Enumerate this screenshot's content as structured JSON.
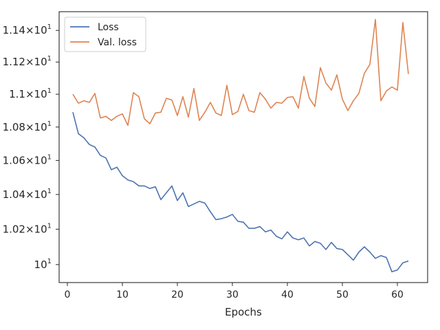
{
  "chart_data": {
    "type": "line",
    "title": "",
    "xlabel": "Epochs",
    "ylabel": "",
    "xlim": [
      -1.5,
      65.5
    ],
    "ylim": [
      9.9,
      11.52
    ],
    "y_scale": "log",
    "grid": false,
    "legend_position": "top-left",
    "x_ticks": [
      {
        "value": 0,
        "label": "0"
      },
      {
        "value": 10,
        "label": "10"
      },
      {
        "value": 20,
        "label": "20"
      },
      {
        "value": 30,
        "label": "30"
      },
      {
        "value": 40,
        "label": "40"
      },
      {
        "value": 50,
        "label": "50"
      },
      {
        "value": 60,
        "label": "60"
      }
    ],
    "y_ticks": [
      {
        "value": 10.0,
        "mantissa": "",
        "exponent": "1"
      },
      {
        "value": 10.2,
        "mantissa": "1.02",
        "exponent": "1"
      },
      {
        "value": 10.4,
        "mantissa": "1.04",
        "exponent": "1"
      },
      {
        "value": 10.6,
        "mantissa": "1.06",
        "exponent": "1"
      },
      {
        "value": 10.8,
        "mantissa": "1.08",
        "exponent": "1"
      },
      {
        "value": 11.0,
        "mantissa": "1.1",
        "exponent": "1"
      },
      {
        "value": 11.2,
        "mantissa": "1.12",
        "exponent": "1"
      },
      {
        "value": 11.4,
        "mantissa": "1.14",
        "exponent": "1"
      }
    ],
    "x": [
      1,
      2,
      3,
      4,
      5,
      6,
      7,
      8,
      9,
      10,
      11,
      12,
      13,
      14,
      15,
      16,
      17,
      18,
      19,
      20,
      21,
      22,
      23,
      24,
      25,
      26,
      27,
      28,
      29,
      30,
      31,
      32,
      33,
      34,
      35,
      36,
      37,
      38,
      39,
      40,
      41,
      42,
      43,
      44,
      45,
      46,
      47,
      48,
      49,
      50,
      51,
      52,
      53,
      54,
      55,
      56,
      57,
      58,
      59,
      60,
      61,
      62
    ],
    "series": [
      {
        "name": "Loss",
        "color": "#4c72b0",
        "values": [
          10.89,
          10.76,
          10.735,
          10.695,
          10.68,
          10.63,
          10.615,
          10.545,
          10.56,
          10.51,
          10.485,
          10.475,
          10.45,
          10.45,
          10.435,
          10.445,
          10.37,
          10.41,
          10.45,
          10.365,
          10.41,
          10.33,
          10.345,
          10.36,
          10.35,
          10.3,
          10.255,
          10.26,
          10.27,
          10.285,
          10.245,
          10.24,
          10.205,
          10.205,
          10.215,
          10.185,
          10.195,
          10.16,
          10.145,
          10.185,
          10.15,
          10.14,
          10.15,
          10.105,
          10.13,
          10.12,
          10.085,
          10.125,
          10.09,
          10.085,
          10.055,
          10.025,
          10.07,
          10.1,
          10.07,
          10.035,
          10.05,
          10.04,
          9.96,
          9.97,
          10.01,
          10.02
        ]
      },
      {
        "name": "Val. loss",
        "color": "#dd8452",
        "values": [
          11.0,
          10.945,
          10.96,
          10.95,
          11.005,
          10.855,
          10.865,
          10.84,
          10.865,
          10.88,
          10.81,
          11.01,
          10.985,
          10.85,
          10.82,
          10.885,
          10.89,
          10.975,
          10.965,
          10.87,
          10.985,
          10.86,
          11.035,
          10.84,
          10.89,
          10.95,
          10.885,
          10.87,
          11.055,
          10.875,
          10.895,
          11.0,
          10.9,
          10.89,
          11.01,
          10.97,
          10.915,
          10.95,
          10.945,
          10.98,
          10.985,
          10.915,
          11.11,
          10.975,
          10.925,
          11.165,
          11.07,
          11.025,
          11.12,
          10.97,
          10.9,
          10.96,
          11.005,
          11.13,
          11.185,
          11.47,
          10.96,
          11.02,
          11.045,
          11.025,
          11.45,
          11.125
        ]
      }
    ]
  }
}
